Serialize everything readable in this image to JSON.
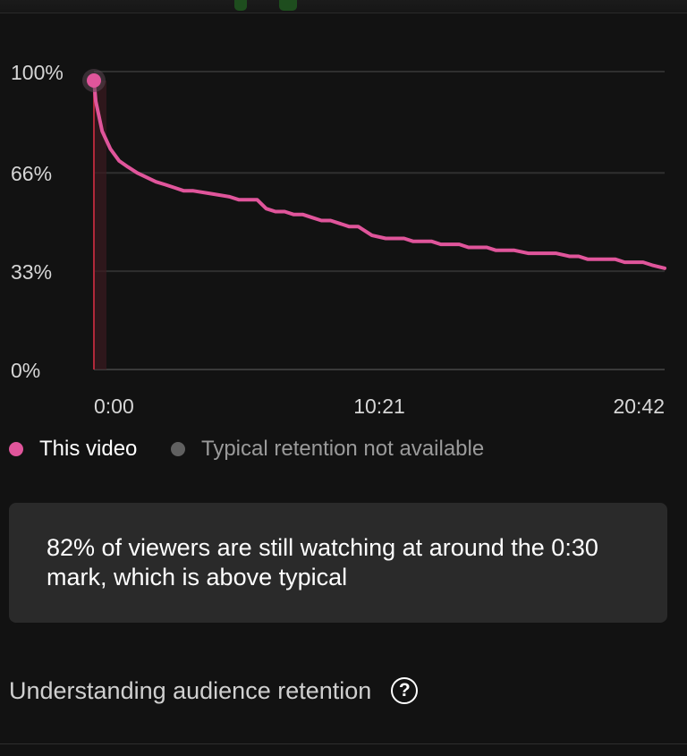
{
  "colors": {
    "series": "#e0559b",
    "marker_line": "#b0283a",
    "typical_dot": "#606060",
    "grid": "#2f2f2f"
  },
  "chart_data": {
    "type": "line",
    "title": "",
    "xlabel": "",
    "ylabel": "",
    "x_ticks": [
      "0:00",
      "10:21",
      "20:42"
    ],
    "y_ticks": [
      "100%",
      "66%",
      "33%",
      "0%"
    ],
    "ylim": [
      0,
      100
    ],
    "xlim": [
      "0:00",
      "20:42"
    ],
    "grid": true,
    "legend_placement": "bottom-left",
    "series": [
      {
        "name": "This video",
        "x": [
          "0:00",
          "0:04",
          "0:18",
          "0:36",
          "0:55",
          "1:14",
          "1:34",
          "2:15",
          "2:36",
          "2:56",
          "3:15",
          "3:35",
          "4:15",
          "4:55",
          "5:15",
          "5:55",
          "6:15",
          "6:35",
          "6:55",
          "7:15",
          "7:35",
          "7:55",
          "8:15",
          "8:35",
          "8:55",
          "9:15",
          "9:35",
          "10:05",
          "10:35",
          "10:55",
          "11:15",
          "11:35",
          "11:55",
          "12:15",
          "12:35",
          "12:55",
          "13:15",
          "13:35",
          "13:55",
          "14:15",
          "14:35",
          "14:55",
          "15:15",
          "15:45",
          "16:15",
          "16:45",
          "17:15",
          "17:35",
          "17:55",
          "18:25",
          "18:55",
          "19:15",
          "19:35",
          "19:55",
          "20:15",
          "20:42"
        ],
        "values": [
          97,
          90,
          80,
          74,
          70,
          68,
          66,
          63,
          62,
          61,
          60,
          60,
          59,
          58,
          57,
          57,
          54,
          53,
          53,
          52,
          52,
          51,
          50,
          50,
          49,
          48,
          48,
          45,
          44,
          44,
          44,
          43,
          43,
          43,
          42,
          42,
          42,
          41,
          41,
          41,
          40,
          40,
          40,
          39,
          39,
          39,
          38,
          38,
          37,
          37,
          37,
          36,
          36,
          36,
          35,
          34
        ]
      }
    ],
    "legend": [
      "This video",
      "Typical retention not available"
    ]
  },
  "legend": {
    "this_video": "This video",
    "typical": "Typical retention not available"
  },
  "callout": {
    "text": "82% of viewers are still watching at around the 0:30 mark, which is above typical"
  },
  "help": {
    "label": "Understanding audience retention",
    "icon": "question-circle-icon",
    "icon_glyph": "?"
  }
}
